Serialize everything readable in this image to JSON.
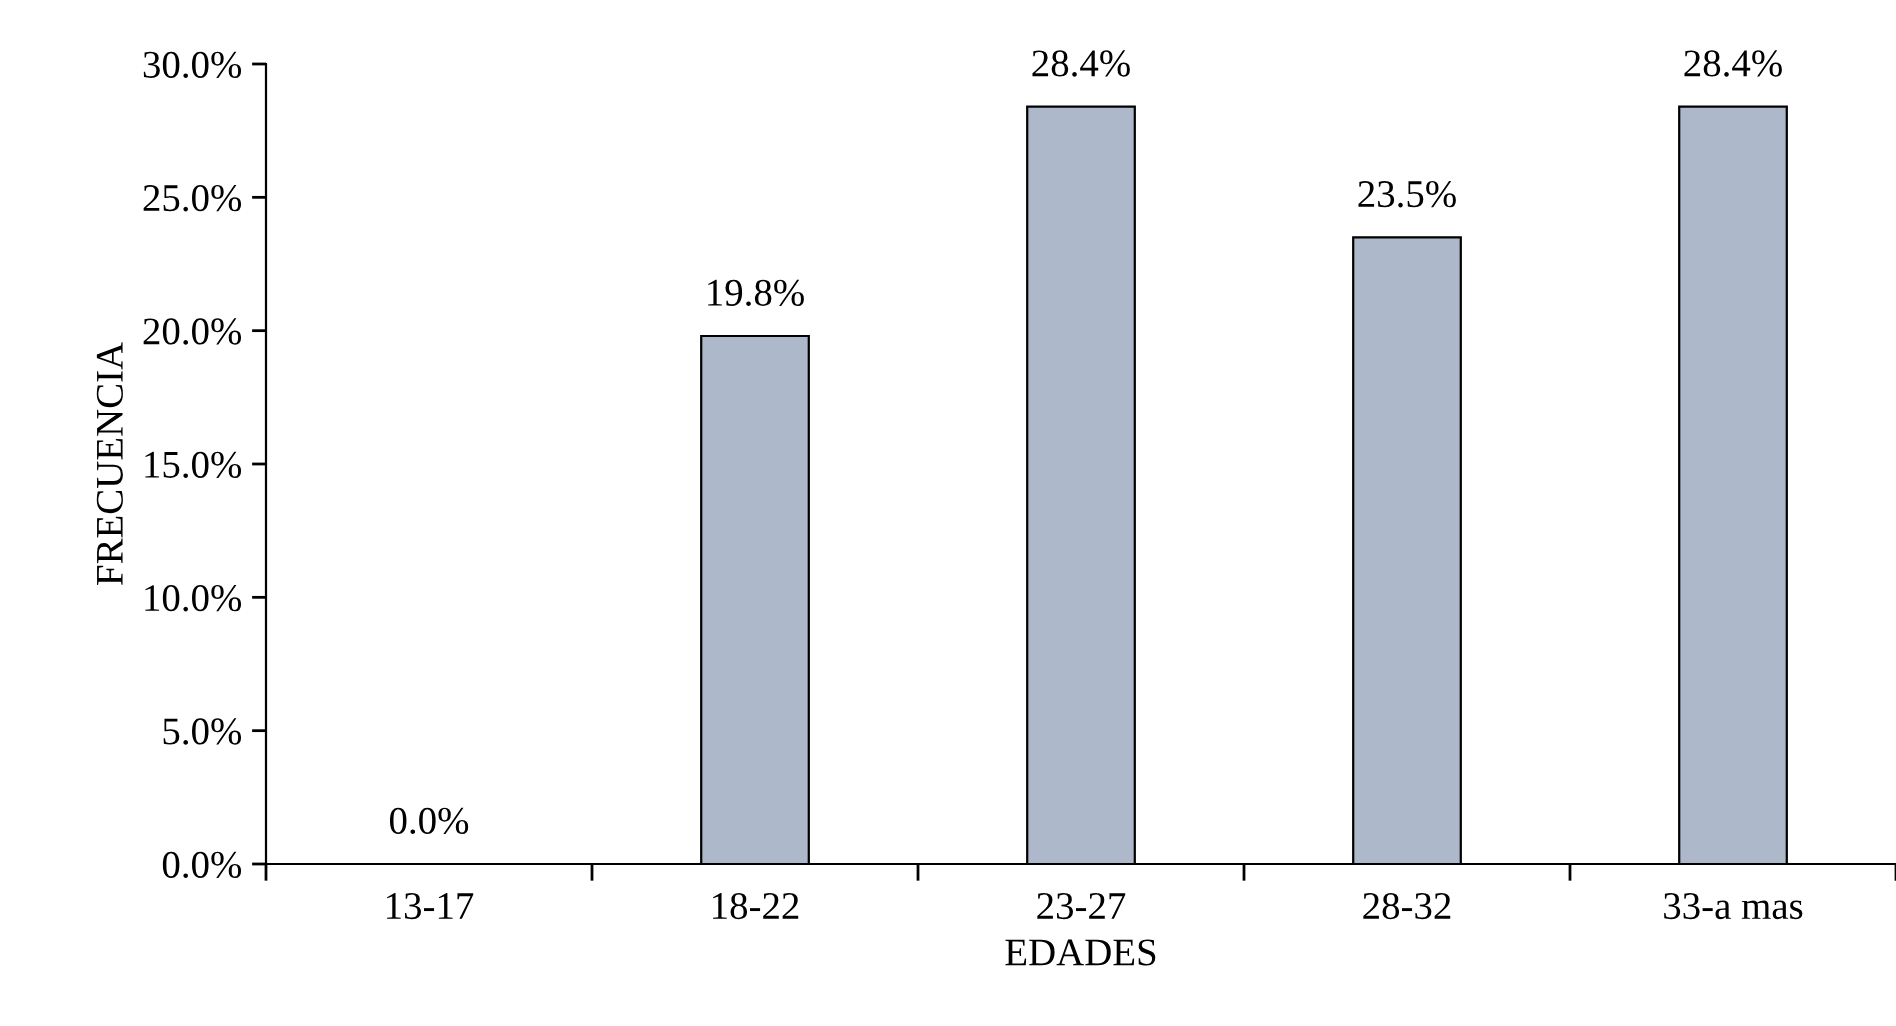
{
  "chart_data": {
    "type": "bar",
    "xlabel": "EDADES",
    "ylabel": "FRECUENCIA",
    "categories": [
      "13-17",
      "18-22",
      "23-27",
      "28-32",
      "33-a mas"
    ],
    "values": [
      0.0,
      19.8,
      28.4,
      23.5,
      28.4
    ],
    "value_labels": [
      "0.0%",
      "19.8%",
      "28.4%",
      "23.5%",
      "28.4%"
    ],
    "color": "#adb9ca",
    "ylim": [
      0,
      30
    ],
    "yticks": [
      {
        "value": 0,
        "label": "0.0%"
      },
      {
        "value": 5,
        "label": "5.0%"
      },
      {
        "value": 10,
        "label": "10.0%"
      },
      {
        "value": 15,
        "label": "15.0%"
      },
      {
        "value": 20,
        "label": "20.0%"
      },
      {
        "value": 25,
        "label": "25.0%"
      },
      {
        "value": 30,
        "label": "30.0%"
      }
    ],
    "grid": false,
    "legend": false
  }
}
